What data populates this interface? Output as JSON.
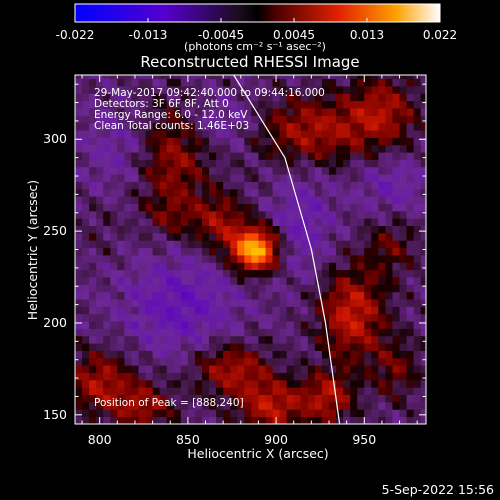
{
  "colorbar": {
    "tick_labels": [
      "-0.022",
      "-0.013",
      "-0.0045",
      "0.0045",
      "0.013",
      "0.022"
    ],
    "units": "(photons cm⁻² s⁻¹ asec⁻²)"
  },
  "info": {
    "time_range": "29-May-2017 09:42:40.000 to 09:44:16.000",
    "detectors": "Detectors: 3F 6F 8F, Att 0",
    "energy": "Energy Range: 6.0 - 12.0 keV",
    "clean": "Clean     Total counts: 1.46E+03",
    "peak": "Position of Peak = [888,240]"
  },
  "footer": {
    "date": "5-Sep-2022 15:56"
  },
  "colors": {
    "axis": "#ffffff",
    "limb": "#ffffff"
  },
  "chart_data": {
    "type": "heatmap",
    "title": "Reconstructed RHESSI Image",
    "xlabel": "Heliocentric X (arcsec)",
    "ylabel": "Heliocentric Y (arcsec)",
    "xlim": [
      786,
      985
    ],
    "ylim": [
      145,
      335
    ],
    "xticks": [
      800,
      850,
      900,
      950
    ],
    "yticks": [
      150,
      200,
      250,
      300
    ],
    "colorbar_range": [
      -0.022,
      0.022
    ],
    "peak": [
      888,
      240
    ],
    "limb_line": [
      [
        876,
        335
      ],
      [
        905,
        290
      ],
      [
        920,
        240
      ],
      [
        928,
        200
      ],
      [
        936,
        145
      ]
    ],
    "sources": [
      {
        "x": 888,
        "y": 240,
        "amp": 0.022,
        "sx": 9,
        "sy": 8
      },
      {
        "x": 868,
        "y": 255,
        "amp": 0.008,
        "sx": 11,
        "sy": 11
      },
      {
        "x": 840,
        "y": 290,
        "amp": 0.0085,
        "sx": 15,
        "sy": 20
      },
      {
        "x": 840,
        "y": 258,
        "amp": 0.004,
        "sx": 9,
        "sy": 8
      },
      {
        "x": 800,
        "y": 250,
        "amp": 0.0015,
        "sx": 9,
        "sy": 10
      },
      {
        "x": 800,
        "y": 168,
        "amp": 0.009,
        "sx": 13,
        "sy": 12
      },
      {
        "x": 825,
        "y": 155,
        "amp": 0.008,
        "sx": 12,
        "sy": 9
      },
      {
        "x": 875,
        "y": 175,
        "amp": 0.009,
        "sx": 15,
        "sy": 10
      },
      {
        "x": 898,
        "y": 155,
        "amp": 0.01,
        "sx": 14,
        "sy": 10
      },
      {
        "x": 920,
        "y": 305,
        "amp": 0.009,
        "sx": 22,
        "sy": 13
      },
      {
        "x": 960,
        "y": 315,
        "amp": 0.0085,
        "sx": 14,
        "sy": 14
      },
      {
        "x": 943,
        "y": 205,
        "amp": 0.011,
        "sx": 13,
        "sy": 17
      },
      {
        "x": 968,
        "y": 175,
        "amp": 0.0055,
        "sx": 10,
        "sy": 12
      },
      {
        "x": 965,
        "y": 242,
        "amp": 0.005,
        "sx": 11,
        "sy": 12
      },
      {
        "x": 930,
        "y": 160,
        "amp": 0.009,
        "sx": 10,
        "sy": 10
      },
      {
        "x": 845,
        "y": 210,
        "amp": -0.006,
        "sx": 22,
        "sy": 18
      },
      {
        "x": 815,
        "y": 295,
        "amp": -0.004,
        "sx": 16,
        "sy": 16
      },
      {
        "x": 870,
        "y": 310,
        "amp": -0.004,
        "sx": 14,
        "sy": 10
      },
      {
        "x": 915,
        "y": 255,
        "amp": -0.0045,
        "sx": 12,
        "sy": 20
      },
      {
        "x": 965,
        "y": 275,
        "amp": -0.004,
        "sx": 14,
        "sy": 12
      }
    ]
  }
}
